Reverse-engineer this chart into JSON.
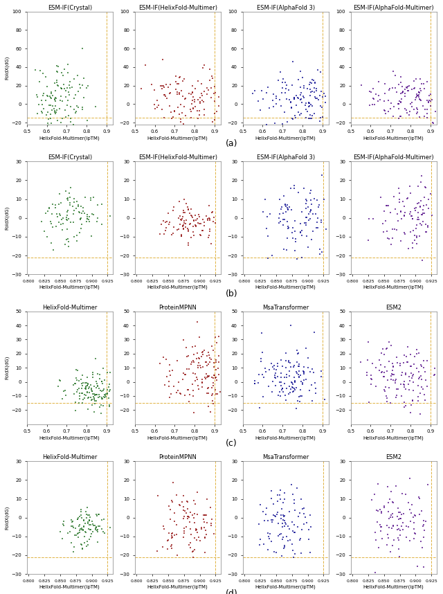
{
  "rows": [
    {
      "label": "(a)",
      "titles": [
        "ESM-IF(Crystal)",
        "ESM-IF(HelixFold-Multimer)",
        "ESM-IF(AlphaFold 3)",
        "ESM-IF(AlphaFold-Multimer)"
      ],
      "colors": [
        "green",
        "red",
        "blue",
        "purple"
      ],
      "xlim": [
        0.5,
        0.93
      ],
      "ylim": [
        -22,
        100
      ],
      "xticks": [
        0.5,
        0.6,
        0.7,
        0.8,
        0.9
      ],
      "yticks": [
        -20,
        0,
        20,
        40,
        60,
        80,
        100
      ],
      "vline": 0.9,
      "hline": -15,
      "xlabel": "HelixFold-Multimer(ipTM)",
      "ylabel": "FoldX(dG)",
      "n_contours": 12
    },
    {
      "label": "(b)",
      "titles": [
        "ESM-IF(Crystal)",
        "ESM-IF(HelixFold-Multimer)",
        "ESM-IF(AlphaFold 3)",
        "ESM-IF(AlphaFold-Multimer)"
      ],
      "colors": [
        "green",
        "red",
        "blue",
        "purple"
      ],
      "xlim": [
        0.797,
        0.933
      ],
      "ylim": [
        -30,
        30
      ],
      "xticks": [
        0.8,
        0.825,
        0.85,
        0.875,
        0.9,
        0.925
      ],
      "yticks": [
        -30,
        -20,
        -10,
        0,
        10,
        20,
        30
      ],
      "vline": 0.925,
      "hline": -21,
      "xlabel": "HelixFold-Multimer(ipTM)",
      "ylabel": "FoldX(dG)",
      "n_contours": 12
    },
    {
      "label": "(c)",
      "titles": [
        "HelixFold-Multimer",
        "ProteinMPNN",
        "MsaTransformer",
        "ESM2"
      ],
      "colors": [
        "green",
        "red",
        "blue",
        "purple"
      ],
      "xlim": [
        0.5,
        0.93
      ],
      "ylim": [
        -30,
        50
      ],
      "xticks": [
        0.5,
        0.6,
        0.7,
        0.8,
        0.9
      ],
      "yticks": [
        -20,
        -10,
        0,
        10,
        20,
        30,
        40,
        50
      ],
      "vline": 0.9,
      "hline": -15,
      "xlabel": "HelixFold-Multimer(ipTM)",
      "ylabel": "FoldX(dG)",
      "n_contours": 10
    },
    {
      "label": "(d)",
      "titles": [
        "HelixFold-Multimer",
        "ProteinMPNN",
        "MsaTransformer",
        "ESM2"
      ],
      "colors": [
        "green",
        "red",
        "blue",
        "purple"
      ],
      "xlim": [
        0.797,
        0.933
      ],
      "ylim": [
        -30,
        30
      ],
      "xticks": [
        0.8,
        0.825,
        0.85,
        0.875,
        0.9,
        0.925
      ],
      "yticks": [
        -30,
        -20,
        -10,
        0,
        10,
        20,
        30
      ],
      "vline": 0.925,
      "hline": -21,
      "xlabel": "HelixFold-Multimer(ipTM)",
      "ylabel": "FoldX(dG)",
      "n_contours": 12
    }
  ],
  "contour_colors": {
    "green": "#3cb371",
    "red": "#e08080",
    "blue": "#87ceeb",
    "purple": "#b09fcc"
  },
  "scatter_colors": {
    "green": "#1a6b1a",
    "red": "#8b0000",
    "blue": "#00008b",
    "purple": "#4b0082"
  }
}
